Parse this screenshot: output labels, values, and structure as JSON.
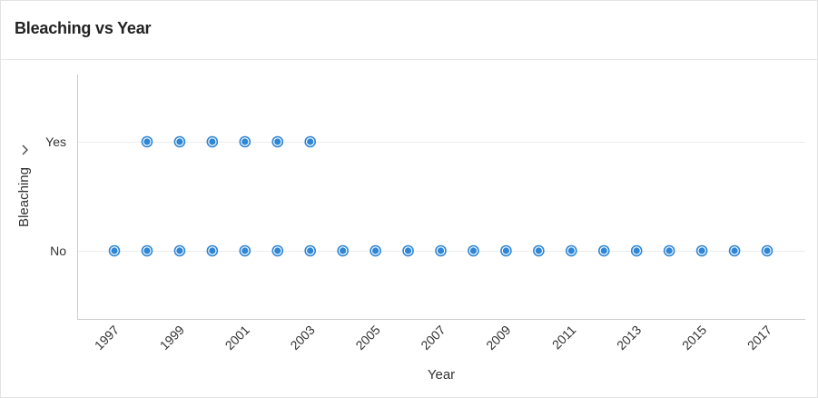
{
  "card": {
    "title": "Bleaching vs Year"
  },
  "chart_data": {
    "type": "scatter",
    "title": "Bleaching vs Year",
    "xlabel": "Year",
    "ylabel": "Bleaching",
    "y_categories": [
      "No",
      "Yes"
    ],
    "xlim": [
      1996,
      2018
    ],
    "x_tick_labels": [
      "1997",
      "1999",
      "2001",
      "2003",
      "2005",
      "2007",
      "2009",
      "2011",
      "2013",
      "2015",
      "2017"
    ],
    "grid": true,
    "legend": "none",
    "marker_color": "#2f86d4",
    "points": [
      {
        "x": 1997,
        "y": "No"
      },
      {
        "x": 1998,
        "y": "No"
      },
      {
        "x": 1998,
        "y": "Yes"
      },
      {
        "x": 1999,
        "y": "No"
      },
      {
        "x": 1999,
        "y": "Yes"
      },
      {
        "x": 2000,
        "y": "No"
      },
      {
        "x": 2000,
        "y": "Yes"
      },
      {
        "x": 2001,
        "y": "No"
      },
      {
        "x": 2001,
        "y": "Yes"
      },
      {
        "x": 2002,
        "y": "No"
      },
      {
        "x": 2002,
        "y": "Yes"
      },
      {
        "x": 2003,
        "y": "No"
      },
      {
        "x": 2003,
        "y": "Yes"
      },
      {
        "x": 2004,
        "y": "No"
      },
      {
        "x": 2005,
        "y": "No"
      },
      {
        "x": 2006,
        "y": "No"
      },
      {
        "x": 2007,
        "y": "No"
      },
      {
        "x": 2008,
        "y": "No"
      },
      {
        "x": 2009,
        "y": "No"
      },
      {
        "x": 2010,
        "y": "No"
      },
      {
        "x": 2011,
        "y": "No"
      },
      {
        "x": 2012,
        "y": "No"
      },
      {
        "x": 2013,
        "y": "No"
      },
      {
        "x": 2014,
        "y": "No"
      },
      {
        "x": 2015,
        "y": "No"
      },
      {
        "x": 2016,
        "y": "No"
      },
      {
        "x": 2017,
        "y": "No"
      }
    ]
  },
  "icons": {
    "sort_indicator": "chevron-right-icon"
  }
}
